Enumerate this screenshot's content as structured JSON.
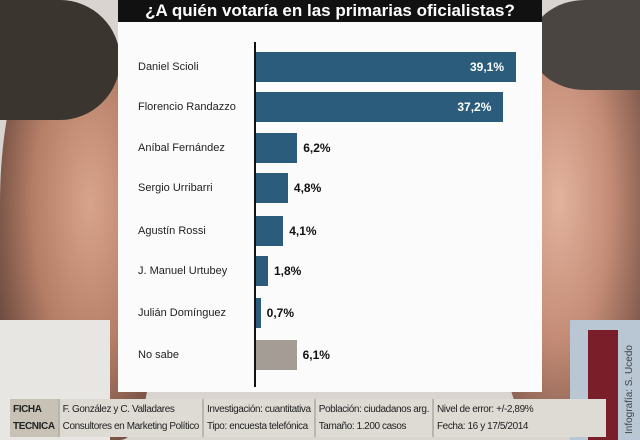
{
  "chart_data": {
    "type": "bar",
    "orientation": "horizontal",
    "title": "¿A quién votaría en las primarias oficialistas?",
    "categories": [
      "Daniel Scioli",
      "Florencio Randazzo",
      "Aníbal Fernández",
      "Sergio Urribarri",
      "Agustín Rossi",
      "J. Manuel Urtubey",
      "Julián Domínguez",
      "No sabe"
    ],
    "values": [
      39.1,
      37.2,
      6.2,
      4.8,
      4.1,
      1.8,
      0.7,
      6.1
    ],
    "value_labels": [
      "39,1%",
      "37,2%",
      "6,2%",
      "4,8%",
      "4,1%",
      "1,8%",
      "0,7%",
      "6,1%"
    ],
    "xlim": [
      0,
      40
    ],
    "grid": false,
    "colors": {
      "candidate": "#2b5c7c",
      "no_sabe": "#a39d95"
    }
  },
  "ficha": {
    "label_1": "FICHA",
    "label_2": "TECNICA",
    "col1": [
      "F. González y C. Valladares",
      "Consultores en Marketing Político"
    ],
    "col2": [
      "Investigación: cuantitativa",
      "Tipo: encuesta telefónica"
    ],
    "col3": [
      "Población: ciudadanos arg.",
      "Tamaño: 1.200 casos"
    ],
    "col4": [
      "Nivel de error: +/-2,89%",
      "Fecha: 16 y 17/5/2014"
    ]
  },
  "credit": "Infografía: S. Ucedo"
}
